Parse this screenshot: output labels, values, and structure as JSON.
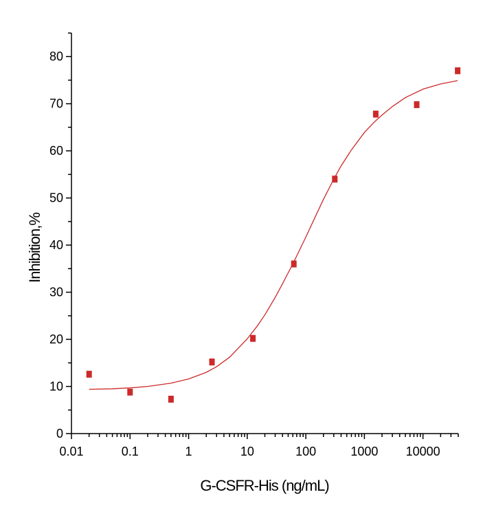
{
  "chart_data": {
    "type": "scatter",
    "title": "",
    "xlabel": "G-CSFR-His (ng/mL)",
    "ylabel": "Inhibition,%",
    "x_scale": "log",
    "xlim": [
      0.01,
      40000
    ],
    "ylim": [
      0,
      85
    ],
    "x_ticks": [
      0.01,
      0.1,
      1,
      10,
      100,
      1000,
      10000
    ],
    "x_tick_labels": [
      "0.01",
      "0.1",
      "1",
      "10",
      "100",
      "1000",
      "10000"
    ],
    "y_ticks": [
      0,
      10,
      20,
      30,
      40,
      50,
      60,
      70,
      80
    ],
    "y_tick_labels": [
      "0",
      "10",
      "20",
      "30",
      "40",
      "50",
      "60",
      "70",
      "80"
    ],
    "grid": false,
    "legend": "none",
    "series": [
      {
        "kind": "points",
        "color": "#cc2a2a",
        "x": [
          0.02,
          0.1,
          0.5,
          2.5,
          12.5,
          62.5,
          312.5,
          1562.5,
          7812.5,
          39062.5
        ],
        "y": [
          12.6,
          8.8,
          7.3,
          15.2,
          20.2,
          36.0,
          54.0,
          67.8,
          69.8,
          77.0
        ]
      },
      {
        "kind": "fit-curve",
        "color": "#cc2a2a",
        "x": [
          0.02,
          0.05,
          0.1,
          0.2,
          0.5,
          1,
          2,
          3,
          5,
          10,
          15,
          20,
          30,
          40,
          60,
          80,
          100,
          150,
          200,
          300,
          400,
          600,
          1000,
          1500,
          2000,
          3000,
          5000,
          10000,
          20000,
          39062.5
        ],
        "y": [
          9.4,
          9.5,
          9.7,
          10.0,
          10.7,
          11.6,
          13.0,
          14.2,
          16.2,
          20.1,
          22.9,
          25.2,
          28.9,
          31.8,
          36.0,
          39.2,
          41.7,
          46.4,
          49.7,
          54.0,
          56.8,
          60.2,
          63.9,
          66.2,
          67.6,
          69.4,
          71.3,
          73.1,
          74.2,
          74.9
        ]
      }
    ]
  }
}
